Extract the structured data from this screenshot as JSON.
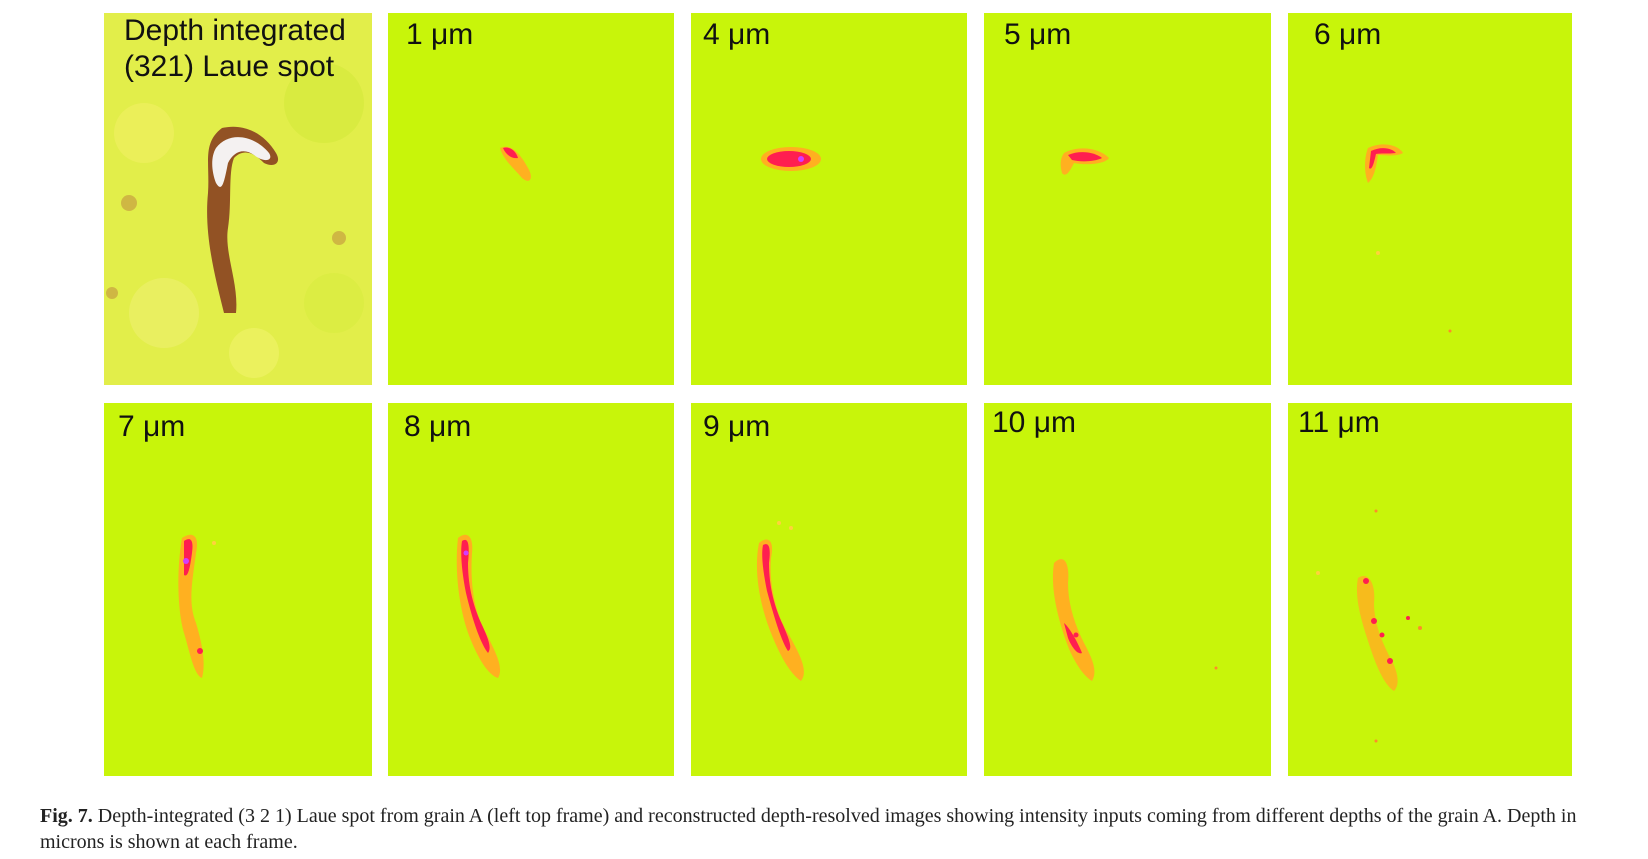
{
  "figure": {
    "panels": [
      {
        "label": "Depth integrated\n(321) Laue spot",
        "kind": "integrated"
      },
      {
        "label": "1 μm",
        "kind": "depth"
      },
      {
        "label": "4 μm",
        "kind": "depth"
      },
      {
        "label": "5 μm",
        "kind": "depth"
      },
      {
        "label": "6 μm",
        "kind": "depth"
      },
      {
        "label": "7 μm",
        "kind": "depth"
      },
      {
        "label": "8 μm",
        "kind": "depth"
      },
      {
        "label": "9 μm",
        "kind": "depth"
      },
      {
        "label": "10 μm",
        "kind": "depth"
      },
      {
        "label": "11 μm",
        "kind": "depth"
      }
    ],
    "colors": {
      "background": "#c8f50a",
      "integrated_background": "#e2ee4a",
      "low_intensity": "#ffd23c",
      "mid_intensity": "#ff8a2a",
      "high_intensity": "#ff1e50",
      "peak_intensity": "#d23cff",
      "saturated": "#f4f1f1"
    }
  },
  "caption": {
    "label": "Fig. 7.",
    "text": " Depth-integrated (3 2 1) Laue spot from grain A (left top frame) and reconstructed depth-resolved images showing intensity inputs coming from different depths of the grain A. Depth in microns is shown at each frame."
  }
}
